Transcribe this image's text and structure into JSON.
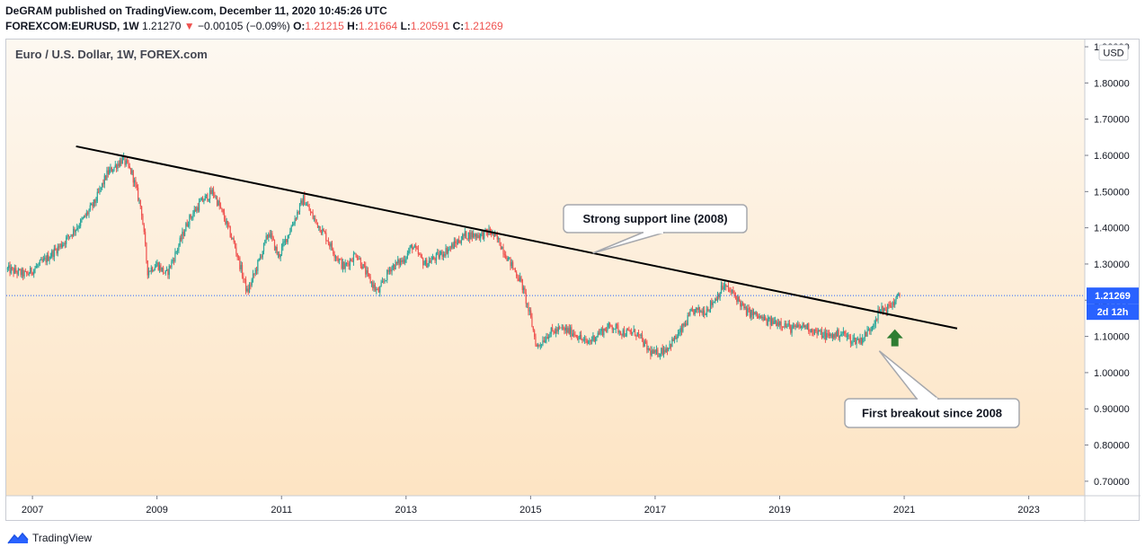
{
  "header": {
    "publisher_line": "DeGRAM published on TradingView.com, December 11, 2020 10:45:26 UTC",
    "symbol": "FOREXCOM:EURUSD, 1W",
    "last": "1.21270",
    "change": "−0.00105 (−0.09%)",
    "o_label": "O:",
    "o": "1.21215",
    "h_label": "H:",
    "h": "1.21664",
    "l_label": "L:",
    "l": "1.20591",
    "c_label": "C:",
    "c": "1.21269"
  },
  "chart_data": {
    "type": "candlestick",
    "title": "Euro / U.S. Dollar, 1W, FOREX.com",
    "currency": "USD",
    "x_ticks": [
      "2007",
      "2009",
      "2011",
      "2013",
      "2015",
      "2017",
      "2019",
      "2021",
      "2023"
    ],
    "x_tick_values": [
      2007,
      2009,
      2011,
      2013,
      2015,
      2017,
      2019,
      2021,
      2023
    ],
    "xlim": [
      2006.58,
      2023.9
    ],
    "y_ticks": [
      "0.70000",
      "0.80000",
      "0.90000",
      "1.00000",
      "1.10000",
      "1.20000",
      "1.30000",
      "1.40000",
      "1.50000",
      "1.60000",
      "1.70000",
      "1.80000",
      "1.90000"
    ],
    "y_tick_values": [
      0.7,
      0.8,
      0.9,
      1.0,
      1.1,
      1.2,
      1.3,
      1.4,
      1.5,
      1.6,
      1.7,
      1.8,
      1.9
    ],
    "ylim": [
      0.66,
      1.92
    ],
    "last_price_label": "1.21269",
    "last_price": 1.21269,
    "countdown_label": "2d 12h",
    "up_color": "#26a69a",
    "down_color": "#ef5350",
    "bg_top": "#fdf8f1",
    "bg_bottom": "#fde4c3",
    "price_path": [
      [
        2006.6,
        1.285
      ],
      [
        2006.9,
        1.27
      ],
      [
        2007.2,
        1.31
      ],
      [
        2007.5,
        1.36
      ],
      [
        2007.8,
        1.42
      ],
      [
        2008.0,
        1.47
      ],
      [
        2008.2,
        1.55
      ],
      [
        2008.45,
        1.59
      ],
      [
        2008.6,
        1.55
      ],
      [
        2008.75,
        1.45
      ],
      [
        2008.85,
        1.28
      ],
      [
        2009.0,
        1.3
      ],
      [
        2009.15,
        1.27
      ],
      [
        2009.3,
        1.33
      ],
      [
        2009.5,
        1.42
      ],
      [
        2009.7,
        1.47
      ],
      [
        2009.9,
        1.5
      ],
      [
        2010.05,
        1.44
      ],
      [
        2010.25,
        1.35
      ],
      [
        2010.45,
        1.22
      ],
      [
        2010.6,
        1.29
      ],
      [
        2010.8,
        1.39
      ],
      [
        2010.95,
        1.32
      ],
      [
        2011.2,
        1.42
      ],
      [
        2011.35,
        1.48
      ],
      [
        2011.5,
        1.43
      ],
      [
        2011.7,
        1.38
      ],
      [
        2011.85,
        1.33
      ],
      [
        2012.0,
        1.29
      ],
      [
        2012.2,
        1.33
      ],
      [
        2012.4,
        1.26
      ],
      [
        2012.55,
        1.22
      ],
      [
        2012.75,
        1.29
      ],
      [
        2012.95,
        1.31
      ],
      [
        2013.1,
        1.35
      ],
      [
        2013.3,
        1.3
      ],
      [
        2013.5,
        1.32
      ],
      [
        2013.75,
        1.35
      ],
      [
        2013.95,
        1.38
      ],
      [
        2014.2,
        1.38
      ],
      [
        2014.35,
        1.39
      ],
      [
        2014.5,
        1.36
      ],
      [
        2014.65,
        1.31
      ],
      [
        2014.85,
        1.25
      ],
      [
        2015.0,
        1.15
      ],
      [
        2015.1,
        1.07
      ],
      [
        2015.3,
        1.11
      ],
      [
        2015.5,
        1.12
      ],
      [
        2015.7,
        1.11
      ],
      [
        2015.9,
        1.08
      ],
      [
        2016.1,
        1.11
      ],
      [
        2016.3,
        1.13
      ],
      [
        2016.5,
        1.11
      ],
      [
        2016.7,
        1.11
      ],
      [
        2016.9,
        1.06
      ],
      [
        2017.0,
        1.05
      ],
      [
        2017.2,
        1.07
      ],
      [
        2017.4,
        1.11
      ],
      [
        2017.6,
        1.17
      ],
      [
        2017.8,
        1.17
      ],
      [
        2017.95,
        1.2
      ],
      [
        2018.1,
        1.24
      ],
      [
        2018.3,
        1.21
      ],
      [
        2018.45,
        1.17
      ],
      [
        2018.6,
        1.16
      ],
      [
        2018.8,
        1.14
      ],
      [
        2019.0,
        1.14
      ],
      [
        2019.2,
        1.12
      ],
      [
        2019.4,
        1.13
      ],
      [
        2019.6,
        1.11
      ],
      [
        2019.8,
        1.1
      ],
      [
        2020.0,
        1.11
      ],
      [
        2020.15,
        1.09
      ],
      [
        2020.3,
        1.09
      ],
      [
        2020.45,
        1.12
      ],
      [
        2020.6,
        1.17
      ],
      [
        2020.75,
        1.18
      ],
      [
        2020.92,
        1.21
      ]
    ],
    "trendline": {
      "from": [
        2007.7,
        1.625
      ],
      "to": [
        2021.85,
        1.122
      ]
    },
    "annotations": [
      {
        "text": "Strong support line (2008)",
        "anchor": [
          2016.0,
          1.33
        ]
      },
      {
        "text": "First breakout since 2008",
        "anchor": [
          2020.6,
          1.06
        ]
      }
    ],
    "arrow_at": [
      2020.85,
      1.095
    ]
  },
  "footer": {
    "brand": "TradingView"
  }
}
